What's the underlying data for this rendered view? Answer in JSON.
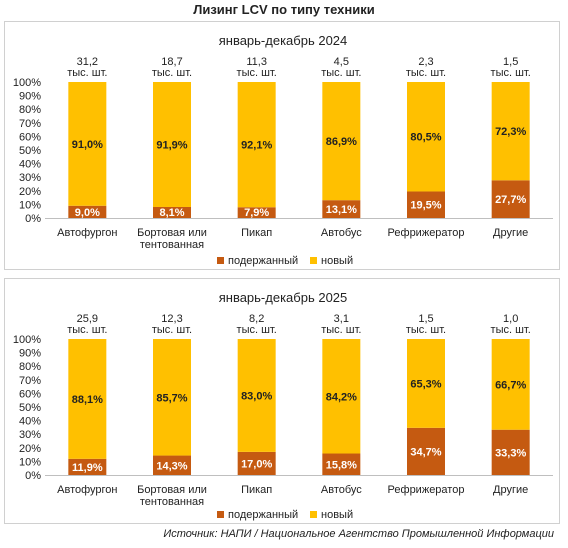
{
  "title": "Лизинг LCV по типу техники",
  "source": "Источник: НАПИ / Национальное Агентство Промышленной Информации",
  "colors": {
    "used": "#C55A11",
    "new": "#FFC000"
  },
  "chart_data": [
    {
      "type": "bar",
      "stacked": true,
      "title": "январь-декабрь 2024",
      "categories": [
        [
          "Автофургон"
        ],
        [
          "Бортовая или",
          "тентованная"
        ],
        [
          "Пикап"
        ],
        [
          "Автобус"
        ],
        [
          "Рефрижератор"
        ],
        [
          "Другие"
        ]
      ],
      "totals": [
        {
          "value": "31,2",
          "unit": "тыс. шт."
        },
        {
          "value": "18,7",
          "unit": "тыс. шт."
        },
        {
          "value": "11,3",
          "unit": "тыс. шт."
        },
        {
          "value": "4,5",
          "unit": "тыс. шт."
        },
        {
          "value": "2,3",
          "unit": "тыс. шт."
        },
        {
          "value": "1,5",
          "unit": "тыс. шт."
        }
      ],
      "series": [
        {
          "name": "подержанный",
          "values": [
            9.0,
            8.1,
            7.9,
            13.1,
            19.5,
            27.7
          ],
          "labels": [
            "9,0%",
            "8,1%",
            "7,9%",
            "13,1%",
            "19,5%",
            "27,7%"
          ]
        },
        {
          "name": "новый",
          "values": [
            91.0,
            91.9,
            92.1,
            86.9,
            80.5,
            72.3
          ],
          "labels": [
            "91,0%",
            "91,9%",
            "92,1%",
            "86,9%",
            "80,5%",
            "72,3%"
          ]
        }
      ],
      "yticks": [
        "0%",
        "10%",
        "20%",
        "30%",
        "40%",
        "50%",
        "60%",
        "70%",
        "80%",
        "90%",
        "100%"
      ],
      "ylim": [
        0,
        100
      ],
      "legend": "bottom"
    },
    {
      "type": "bar",
      "stacked": true,
      "title": "январь-декабрь 2025",
      "categories": [
        [
          "Автофургон"
        ],
        [
          "Бортовая или",
          "тентованная"
        ],
        [
          "Пикап"
        ],
        [
          "Автобус"
        ],
        [
          "Рефрижератор"
        ],
        [
          "Другие"
        ]
      ],
      "totals": [
        {
          "value": "25,9",
          "unit": "тыс. шт."
        },
        {
          "value": "12,3",
          "unit": "тыс. шт."
        },
        {
          "value": "8,2",
          "unit": "тыс. шт."
        },
        {
          "value": "3,1",
          "unit": "тыс. шт."
        },
        {
          "value": "1,5",
          "unit": "тыс. шт."
        },
        {
          "value": "1,0",
          "unit": "тыс. шт."
        }
      ],
      "series": [
        {
          "name": "подержанный",
          "values": [
            11.9,
            14.3,
            17.0,
            15.8,
            34.7,
            33.3
          ],
          "labels": [
            "11,9%",
            "14,3%",
            "17,0%",
            "15,8%",
            "34,7%",
            "33,3%"
          ]
        },
        {
          "name": "новый",
          "values": [
            88.1,
            85.7,
            83.0,
            84.2,
            65.3,
            66.7
          ],
          "labels": [
            "88,1%",
            "85,7%",
            "83,0%",
            "84,2%",
            "65,3%",
            "66,7%"
          ]
        }
      ],
      "yticks": [
        "0%",
        "10%",
        "20%",
        "30%",
        "40%",
        "50%",
        "60%",
        "70%",
        "80%",
        "90%",
        "100%"
      ],
      "ylim": [
        0,
        100
      ],
      "legend": "bottom"
    }
  ]
}
